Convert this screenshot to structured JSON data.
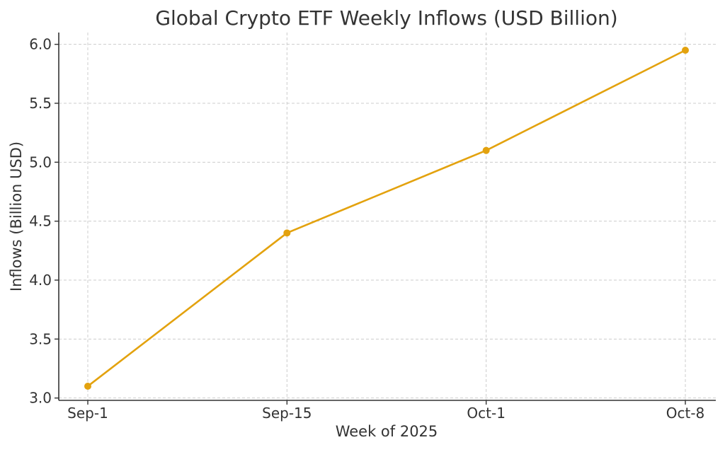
{
  "colors": {
    "series": "#e3a20e",
    "axis": "#333333",
    "grid": "#cccccc",
    "text": "#333333",
    "background": "#ffffff"
  },
  "chart_data": {
    "type": "line",
    "title": "Global Crypto ETF Weekly Inflows (USD Billion)",
    "xlabel": "Week of 2025",
    "ylabel": "Inflows (Billion USD)",
    "categories": [
      "Sep-1",
      "Sep-15",
      "Oct-1",
      "Oct-8"
    ],
    "series": [
      {
        "values": [
          3.1,
          4.4,
          5.1,
          5.95
        ]
      }
    ],
    "ylim": [
      2.98,
      6.1
    ],
    "yticks": [
      3.0,
      3.5,
      4.0,
      4.5,
      5.0,
      5.5,
      6.0
    ],
    "ytick_labels": [
      "3.0",
      "3.5",
      "4.0",
      "4.5",
      "5.0",
      "5.5",
      "6.0"
    ],
    "grid": true,
    "markers": true
  }
}
